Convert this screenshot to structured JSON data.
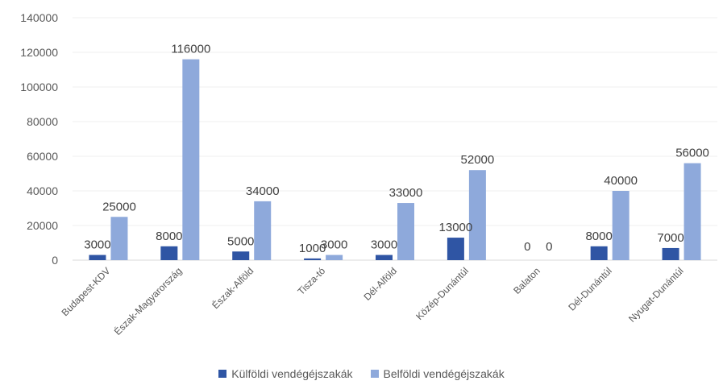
{
  "chart_data": {
    "type": "bar",
    "categories": [
      "Budapest-KDV",
      "Észak-Magyarország",
      "Észak-Alföld",
      "Tisza-tó",
      "Dél-Alföld",
      "Közép-Dunántúl",
      "Balaton",
      "Dél-Dunántúl",
      "Nyugat-Dunántúl"
    ],
    "series": [
      {
        "name": "Külföldi vendégéjszakák",
        "color": "#2f55a4",
        "values": [
          3000,
          8000,
          5000,
          1000,
          3000,
          13000,
          0,
          8000,
          7000
        ]
      },
      {
        "name": "Belföldi vendégéjszakák",
        "color": "#8ea9db",
        "values": [
          25000,
          116000,
          34000,
          3000,
          33000,
          52000,
          0,
          40000,
          56000
        ]
      }
    ],
    "ylim": [
      0,
      140000
    ],
    "yticks": [
      "0",
      "20000",
      "40000",
      "60000",
      "80000",
      "100000",
      "120000",
      "140000"
    ],
    "grid": true,
    "legend_position": "bottom"
  }
}
